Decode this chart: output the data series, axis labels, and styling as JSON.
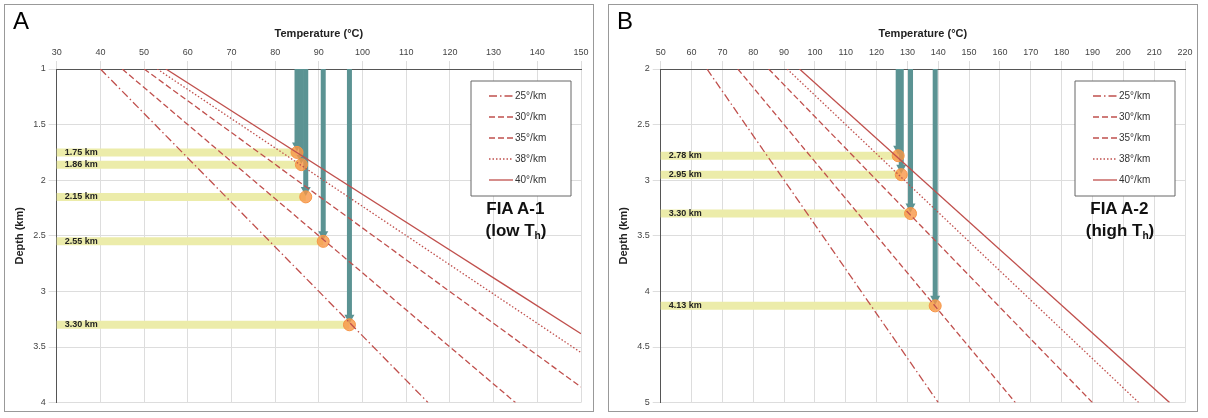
{
  "chart_data": [
    {
      "type": "line",
      "title": "A",
      "xlabel": "Temperature (°C)",
      "ylabel": "Depth (km)",
      "xlim": [
        30,
        150
      ],
      "xticks": [
        30,
        40,
        50,
        60,
        70,
        80,
        90,
        100,
        110,
        120,
        130,
        140,
        150
      ],
      "ylim": [
        4,
        1
      ],
      "yticks": [
        1,
        1.5,
        2,
        2.5,
        3,
        3.5,
        4
      ],
      "grid": true,
      "legend": "top right",
      "annotations": [
        "FIA A-1",
        "(low T$_{h}$)"
      ],
      "ref_lines": [
        {
          "axis": "y",
          "value": 1.75,
          "label": "1.75 km",
          "color": "#ececaa"
        },
        {
          "axis": "y",
          "value": 1.86,
          "label": "1.86 km",
          "color": "#ececaa"
        },
        {
          "axis": "y",
          "value": 2.15,
          "label": "2.15 km",
          "color": "#ececaa"
        },
        {
          "axis": "y",
          "value": 2.55,
          "label": "2.55 km",
          "color": "#ececaa"
        },
        {
          "axis": "y",
          "value": 3.3,
          "label": "3.30 km",
          "color": "#ececaa"
        }
      ],
      "series": [
        {
          "name": "25°/km",
          "color": "#c0504d",
          "line_style": "dashdot",
          "x": [
            40,
            115
          ],
          "values": [
            1,
            4
          ]
        },
        {
          "name": "30°/km",
          "color": "#c0504d",
          "line_style": "dashed",
          "x": [
            45,
            135
          ],
          "values": [
            1,
            4
          ]
        },
        {
          "name": "35°/km",
          "color": "#c0504d",
          "line_style": "dashed",
          "x": [
            50,
            150
          ],
          "values": [
            1,
            3.86
          ]
        },
        {
          "name": "38°/km",
          "color": "#c0504d",
          "line_style": "dotted",
          "x": [
            53,
            150
          ],
          "values": [
            1,
            3.55
          ]
        },
        {
          "name": "40°/km",
          "color": "#c0504d",
          "line_style": "solid",
          "x": [
            55,
            150
          ],
          "values": [
            1,
            3.38
          ]
        },
        {
          "type": "scatter",
          "color": "#f79646",
          "marker": "circle",
          "x": [
            85,
            86,
            87,
            91,
            97
          ],
          "values": [
            1.75,
            1.86,
            2.15,
            2.55,
            3.3
          ]
        }
      ]
    },
    {
      "type": "line",
      "title": "B",
      "xlabel": "Temperature (°C)",
      "ylabel": "Depth (km)",
      "xlim": [
        50,
        220
      ],
      "xticks": [
        50,
        60,
        70,
        80,
        90,
        100,
        110,
        120,
        130,
        140,
        150,
        160,
        170,
        180,
        190,
        200,
        210,
        220
      ],
      "ylim": [
        5,
        2
      ],
      "yticks": [
        2,
        2.5,
        3,
        3.5,
        4,
        4.5,
        5
      ],
      "grid": true,
      "legend": "top right",
      "annotations": [
        "FIA A-2",
        "(high T$_{h}$)"
      ],
      "ref_lines": [
        {
          "axis": "y",
          "value": 2.78,
          "label": "2.78 km",
          "color": "#ececaa"
        },
        {
          "axis": "y",
          "value": 2.95,
          "label": "2.95 km",
          "color": "#ececaa"
        },
        {
          "axis": "y",
          "value": 3.3,
          "label": "3.30 km",
          "color": "#ececaa"
        },
        {
          "axis": "y",
          "value": 4.13,
          "label": "4.13 km",
          "color": "#ececaa"
        }
      ],
      "series": [
        {
          "name": "25°/km",
          "color": "#c0504d",
          "line_style": "dashdot",
          "x": [
            65,
            140
          ],
          "values": [
            2,
            5
          ]
        },
        {
          "name": "30°/km",
          "color": "#c0504d",
          "line_style": "dashed",
          "x": [
            75,
            165
          ],
          "values": [
            2,
            5
          ]
        },
        {
          "name": "35°/km",
          "color": "#c0504d",
          "line_style": "dashed",
          "x": [
            85,
            190
          ],
          "values": [
            2,
            5
          ]
        },
        {
          "name": "38°/km",
          "color": "#c0504d",
          "line_style": "dotted",
          "x": [
            91,
            205
          ],
          "values": [
            2,
            5
          ]
        },
        {
          "name": "40°/km",
          "color": "#c0504d",
          "line_style": "solid",
          "x": [
            95,
            215
          ],
          "values": [
            2,
            5
          ]
        },
        {
          "type": "scatter",
          "color": "#f79646",
          "marker": "circle",
          "x": [
            127,
            128,
            131,
            139
          ],
          "values": [
            2.78,
            2.95,
            3.3,
            4.13
          ]
        }
      ]
    }
  ]
}
